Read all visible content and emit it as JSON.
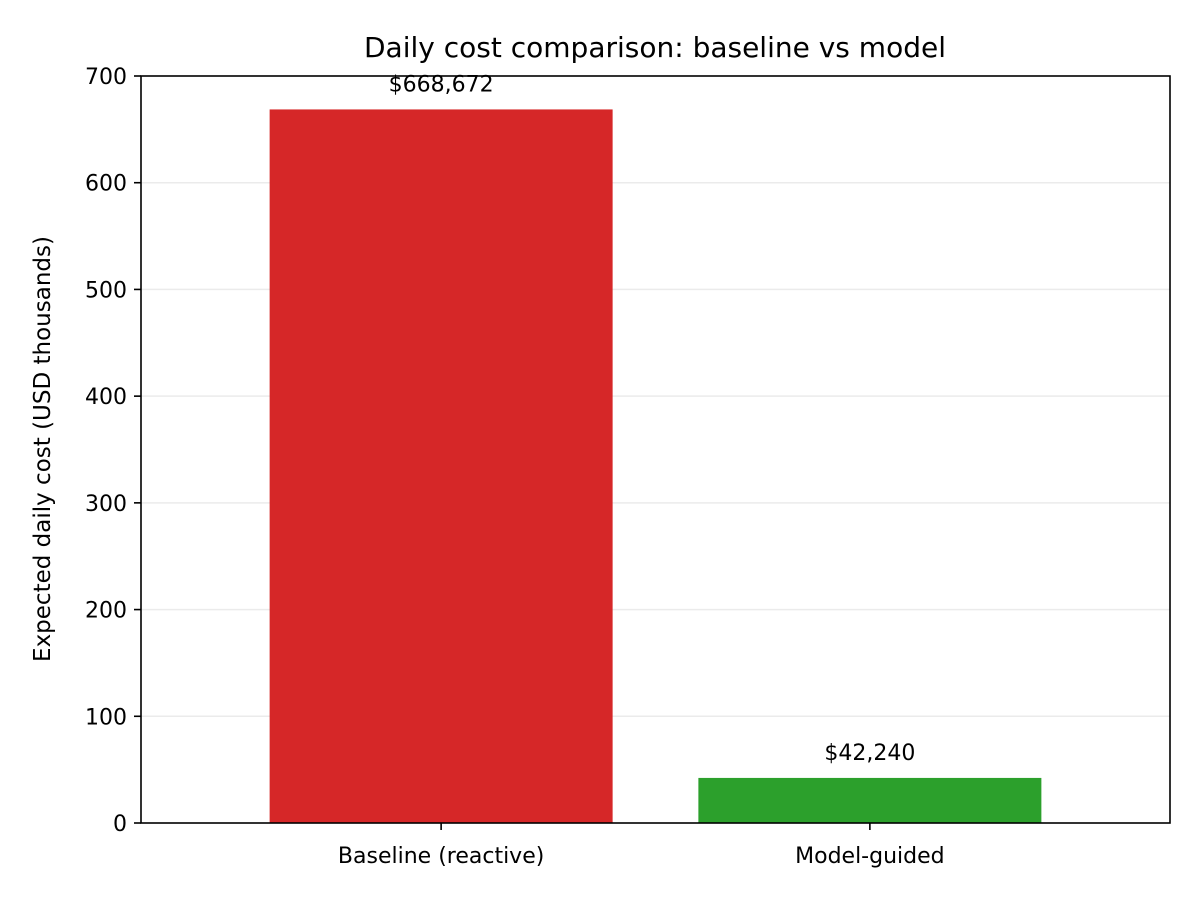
{
  "chart_data": {
    "type": "bar",
    "title": "Daily cost comparison: baseline vs model",
    "xlabel": "",
    "ylabel": "Expected daily cost (USD thousands)",
    "categories": [
      "Baseline (reactive)",
      "Model-guided"
    ],
    "values": [
      668.672,
      42.24
    ],
    "value_labels": [
      "$668,672",
      "$42,240"
    ],
    "colors": [
      "#d62728",
      "#2ca02c"
    ],
    "ylim": [
      0,
      700
    ],
    "yticks": [
      0,
      100,
      200,
      300,
      400,
      500,
      600,
      700
    ],
    "ytick_labels": [
      "0",
      "100",
      "200",
      "300",
      "400",
      "500",
      "600",
      "700"
    ],
    "grid": "horizontal, light",
    "legend": "none"
  }
}
